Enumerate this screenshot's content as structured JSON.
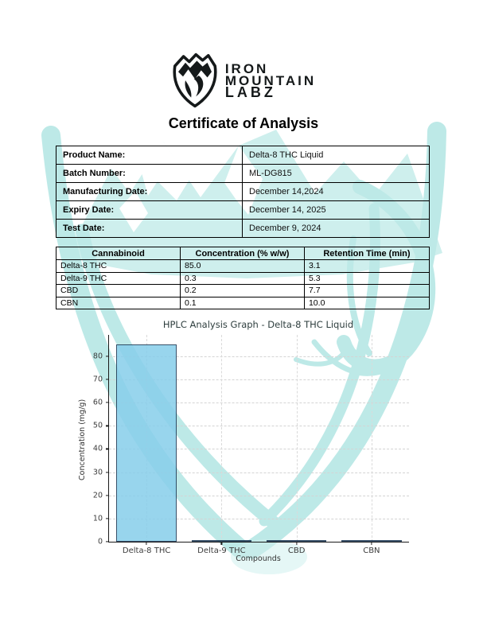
{
  "logo": {
    "lines": [
      "IRON",
      "MOUNTAIN",
      "LABZ"
    ]
  },
  "doc_title": "Certificate of Analysis",
  "product_info": {
    "rows": [
      {
        "label": "Product Name:",
        "value": "Delta-8 THC Liquid"
      },
      {
        "label": "Batch Number:",
        "value": "ML-DG815"
      },
      {
        "label": "Manufacturing Date:",
        "value": "December 14,2024"
      },
      {
        "label": "Expiry Date:",
        "value": "December 14, 2025"
      },
      {
        "label": "Test Date:",
        "value": "December 9, 2024"
      }
    ]
  },
  "cannabinoid_table": {
    "headers": [
      "Cannabinoid",
      "Concentration (% w/w)",
      "Retention Time (min)"
    ],
    "rows": [
      [
        "Delta-8 THC",
        "85.0",
        "3.1"
      ],
      [
        "Delta-9 THC",
        "0.3",
        "5.3"
      ],
      [
        "CBD",
        "0.2",
        "7.7"
      ],
      [
        "CBN",
        "0.1",
        "10.0"
      ]
    ]
  },
  "chart_data": {
    "type": "bar",
    "title": "HPLC Analysis Graph - Delta-8 THC Liquid",
    "categories": [
      "Delta-8 THC",
      "Delta-9 THC",
      "CBD",
      "CBN"
    ],
    "values": [
      85.0,
      0.3,
      0.2,
      0.1
    ],
    "xlabel": "Compounds",
    "ylabel": "Concentration (mg/g)",
    "ylim": [
      0,
      89.25
    ],
    "yticks": [
      0,
      10,
      20,
      30,
      40,
      50,
      60,
      70,
      80
    ],
    "grid": true,
    "legend": false,
    "bar_color": "#87CEEB",
    "bar_edge_color": "#16324f",
    "bar_opacity": 0.85
  },
  "watermark": {
    "color": "#7ed5d0",
    "color_light": "#9fe0dc"
  }
}
